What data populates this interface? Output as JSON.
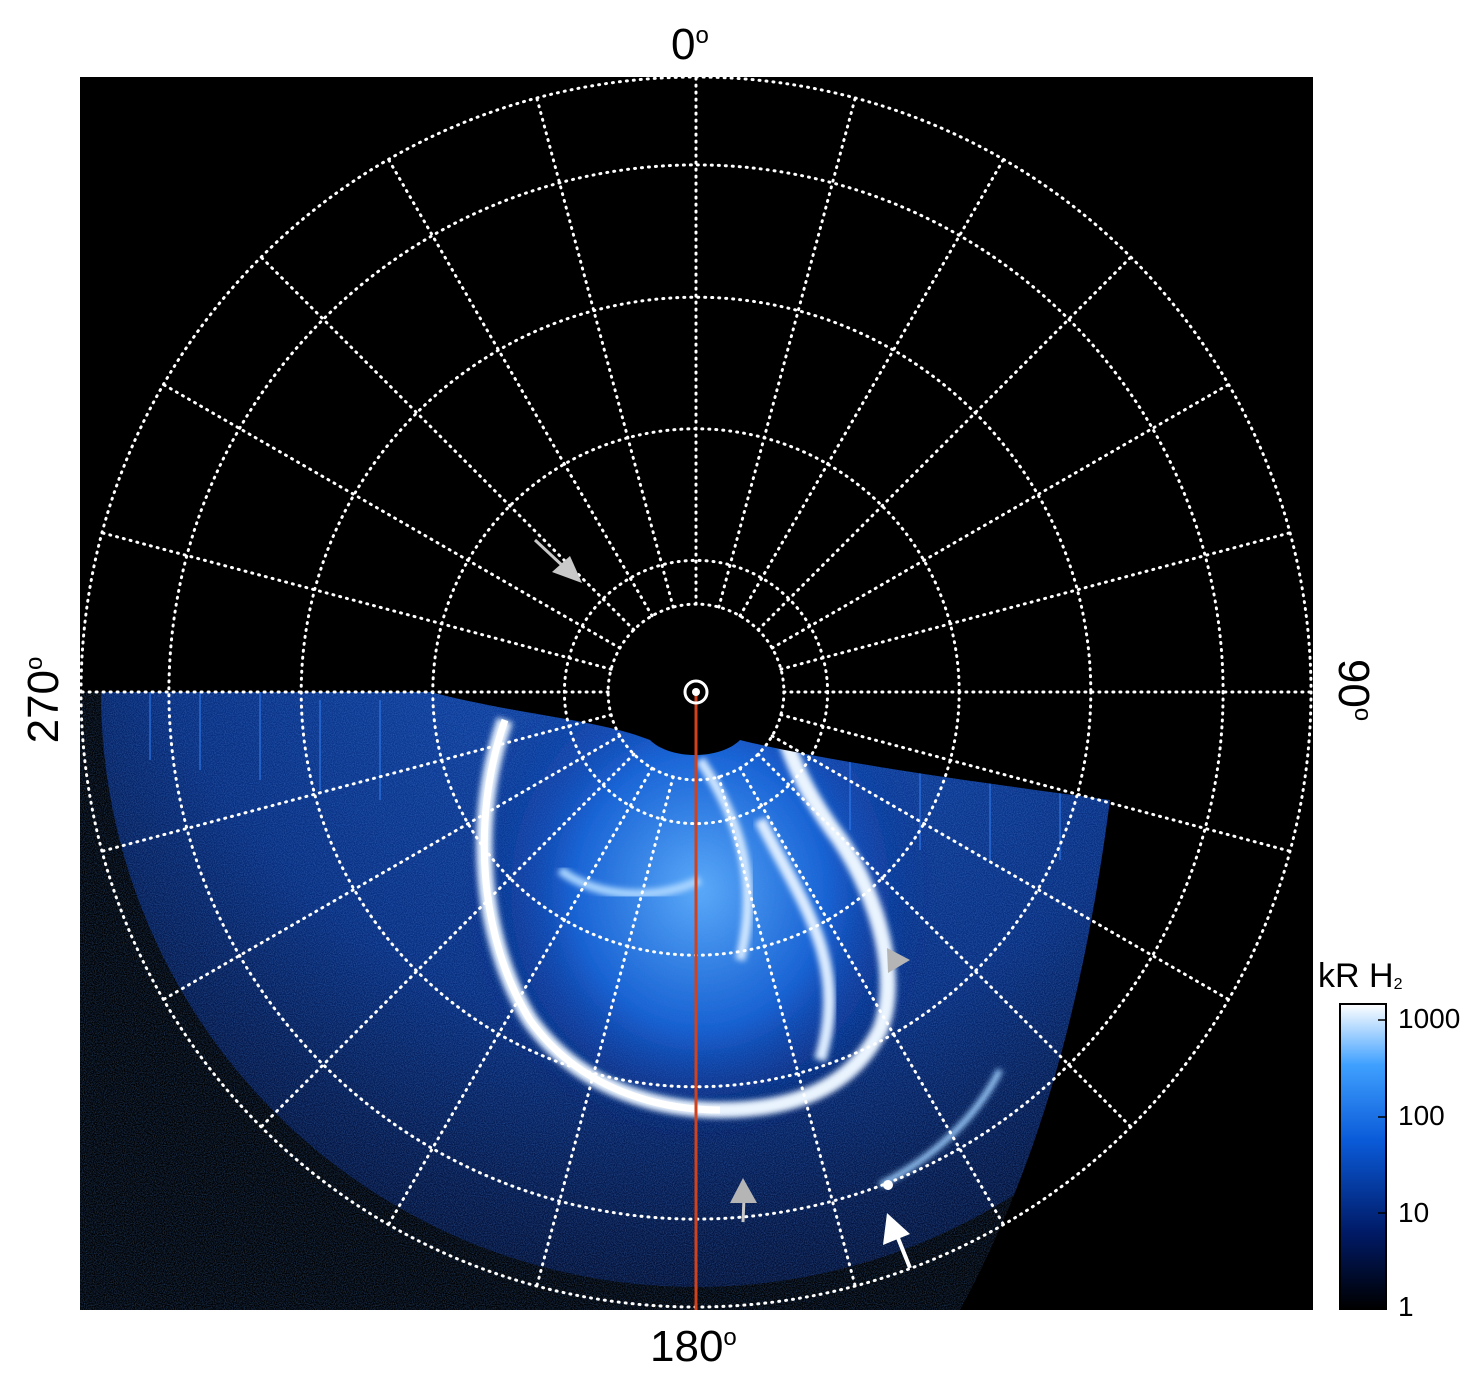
{
  "panel": {
    "direction_labels": {
      "top": "0",
      "bottom": "180",
      "left": "270",
      "right": "90"
    },
    "degree_symbol": "o",
    "meridian_line_color": "#d0411c",
    "background_color": "#000000",
    "grid_color": "#ffffff"
  },
  "colorbar": {
    "title_main": "kR H",
    "title_sub": "2",
    "ticks": [
      "1000",
      "100",
      "10",
      "1"
    ],
    "colors": {
      "low": "#000000",
      "mid": "#1f8cf0",
      "high": "#ffffff"
    }
  },
  "annotations": {
    "arrow_colors": {
      "grey": "#c8c8c8",
      "white": "#ffffff"
    }
  }
}
